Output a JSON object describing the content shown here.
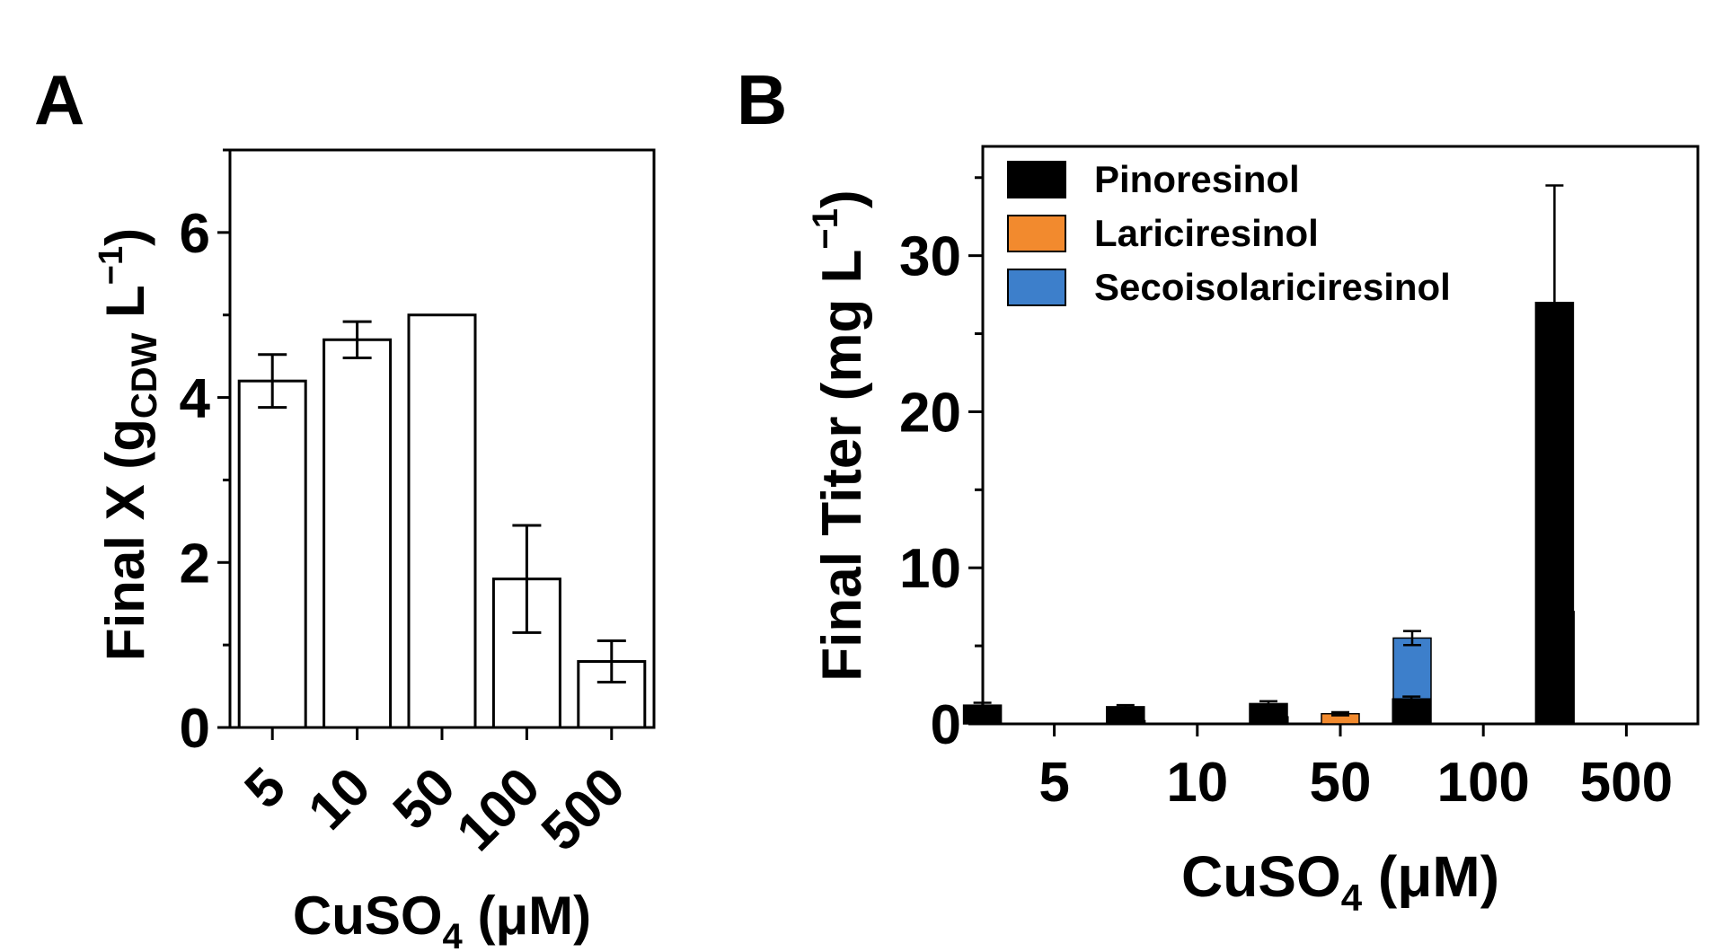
{
  "colors": {
    "pinoresinol": "#000000",
    "lariciresinol": "#f28a2e",
    "secoisolariciresinol": "#3d7fcb",
    "bar_white": "#ffffff",
    "axis": "#000000"
  },
  "chart_data": [
    {
      "panel_label": "A",
      "type": "bar",
      "title": "",
      "xlabel": {
        "main": "CuSO",
        "sub": "4",
        "tail": " (μM)"
      },
      "ylabel": {
        "main": "Final X (g",
        "sub": "CDW",
        "tail": " L",
        "sup": "−1",
        "end": ")"
      },
      "categories": [
        "5",
        "10",
        "50",
        "100",
        "500"
      ],
      "values": [
        4.2,
        4.7,
        5.0,
        1.8,
        0.8
      ],
      "errors": [
        0.32,
        0.22,
        0.0,
        0.65,
        0.25
      ],
      "ylim": [
        0,
        7
      ],
      "yticks": [
        0,
        2,
        4,
        6
      ],
      "yticks_minor": [
        1,
        3,
        5,
        7
      ]
    },
    {
      "panel_label": "B",
      "type": "bar",
      "title": "",
      "xlabel": {
        "main": "CuSO",
        "sub": "4",
        "tail": " (μM)"
      },
      "ylabel": {
        "main": "Final Titer (mg L",
        "sup": "−1",
        "end": ")"
      },
      "categories": [
        "5",
        "10",
        "50",
        "100",
        "500"
      ],
      "ylim": [
        0,
        37
      ],
      "yticks": [
        0,
        10,
        20,
        30
      ],
      "yticks_minor": [
        5,
        15,
        25,
        35
      ],
      "legend_position": "top-left",
      "series": [
        {
          "name": "Pinoresinol",
          "key": "pinoresinol",
          "values": [
            1.2,
            1.1,
            1.3,
            1.6,
            27.0
          ],
          "errors": [
            0.15,
            0.1,
            0.15,
            0.15,
            7.5
          ]
        },
        {
          "name": "Lariciresinol",
          "key": "lariciresinol",
          "values": [
            0.0,
            0.0,
            0.65,
            0.0,
            0.0
          ],
          "errors": [
            0,
            0,
            0.1,
            0,
            0
          ]
        },
        {
          "name": "Secoisolariciresinol",
          "key": "secoisolariciresinol",
          "values": [
            0.2,
            0.45,
            5.5,
            7.2,
            0.0
          ],
          "errors": [
            0.05,
            0.05,
            0.45,
            0.2,
            0
          ]
        }
      ]
    }
  ]
}
